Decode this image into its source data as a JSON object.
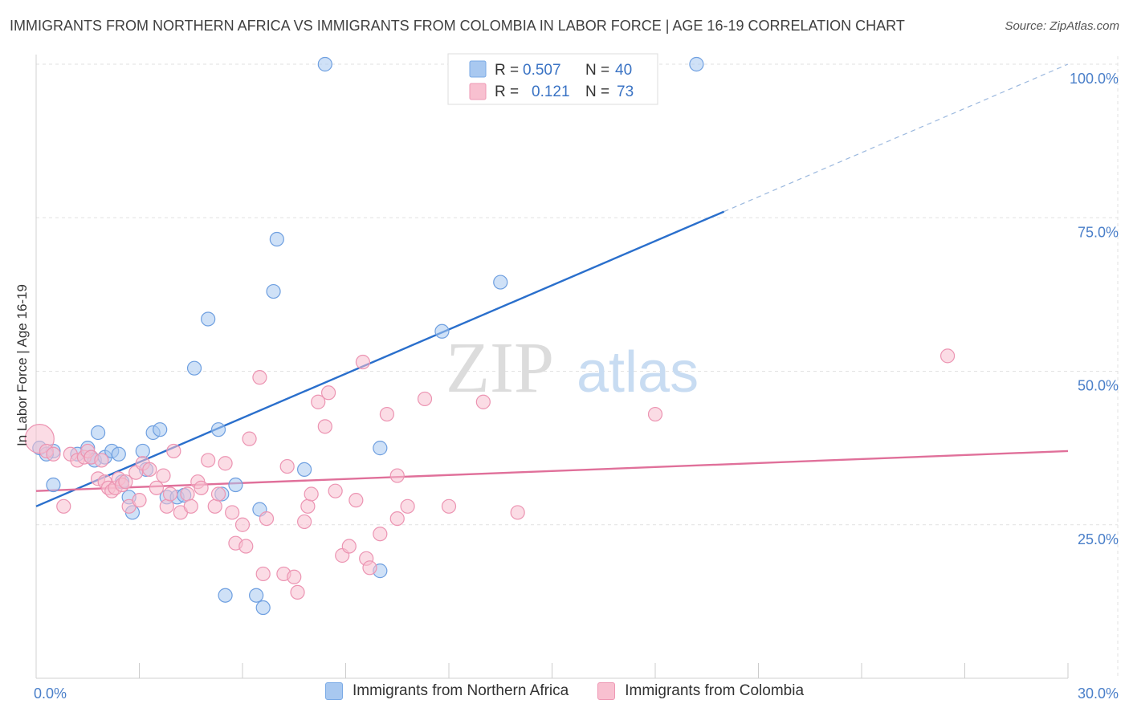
{
  "header": {
    "title": "IMMIGRANTS FROM NORTHERN AFRICA VS IMMIGRANTS FROM COLOMBIA IN LABOR FORCE | AGE 16-19 CORRELATION CHART",
    "source": "Source: ZipAtlas.com"
  },
  "watermark": {
    "zip": "ZIP",
    "atlas": "atlas"
  },
  "legend": {
    "r_label": "R =",
    "n_label": "N =",
    "entries": [
      {
        "r": "0.507",
        "n": "40",
        "color": "#a8c8f0",
        "stroke": "#7aaae6"
      },
      {
        "r": "0.121",
        "n": "73",
        "color": "#f8c0d0",
        "stroke": "#ee98b4"
      }
    ]
  },
  "chart_data": {
    "type": "scatter",
    "title": "IMMIGRANTS FROM NORTHERN AFRICA VS IMMIGRANTS FROM COLOMBIA IN LABOR FORCE | AGE 16-19 CORRELATION CHART",
    "xlabel": "",
    "ylabel": "In Labor Force | Age 16-19",
    "xlim": [
      0,
      30
    ],
    "ylim": [
      0,
      100
    ],
    "x_tick_labels": [
      "0.0%",
      "30.0%"
    ],
    "y_ticks": [
      25,
      50,
      75,
      100
    ],
    "y_tick_labels": [
      "25.0%",
      "50.0%",
      "75.0%",
      "100.0%"
    ],
    "grid": true,
    "legend_position": "top-center",
    "series": [
      {
        "name": "Immigrants from Northern Africa",
        "color": "#a8c8f0",
        "stroke": "#6e9fe0",
        "line_color": "#2a6fcc",
        "trend": {
          "x0": 0,
          "y0": 28,
          "x1": 20,
          "y1": 76,
          "dashed_to_x": 30,
          "dashed_to_y": 100
        },
        "points": [
          [
            0.1,
            37.5
          ],
          [
            0.5,
            37.0
          ],
          [
            0.5,
            31.5
          ],
          [
            1.2,
            36.5
          ],
          [
            1.5,
            37.5
          ],
          [
            1.6,
            36.0
          ],
          [
            1.7,
            35.5
          ],
          [
            1.8,
            40.0
          ],
          [
            2.0,
            36.0
          ],
          [
            2.2,
            37.0
          ],
          [
            2.4,
            36.5
          ],
          [
            2.5,
            32.0
          ],
          [
            2.7,
            29.5
          ],
          [
            2.8,
            27.0
          ],
          [
            3.1,
            37.0
          ],
          [
            3.2,
            34.0
          ],
          [
            3.4,
            40.0
          ],
          [
            3.6,
            40.5
          ],
          [
            3.8,
            29.5
          ],
          [
            4.1,
            29.5
          ],
          [
            4.3,
            29.8
          ],
          [
            4.6,
            50.5
          ],
          [
            5.0,
            58.5
          ],
          [
            5.3,
            40.5
          ],
          [
            5.4,
            30.0
          ],
          [
            5.5,
            13.5
          ],
          [
            5.8,
            31.5
          ],
          [
            6.4,
            13.5
          ],
          [
            6.5,
            27.5
          ],
          [
            6.6,
            11.5
          ],
          [
            6.9,
            63.0
          ],
          [
            7.0,
            71.5
          ],
          [
            7.8,
            34.0
          ],
          [
            8.4,
            100.0
          ],
          [
            10.0,
            37.5
          ],
          [
            10.0,
            17.5
          ],
          [
            11.8,
            56.5
          ],
          [
            13.5,
            64.5
          ],
          [
            19.2,
            100.0
          ],
          [
            0.3,
            36.5
          ]
        ]
      },
      {
        "name": "Immigrants from Colombia",
        "color": "#f8c0d0",
        "stroke": "#ec94b2",
        "line_color": "#e0709a",
        "trend": {
          "x0": 0,
          "y0": 30.5,
          "x1": 30,
          "y1": 37.0
        },
        "points": [
          [
            0.1,
            39.0
          ],
          [
            0.3,
            37.0
          ],
          [
            0.5,
            36.5
          ],
          [
            0.8,
            28.0
          ],
          [
            1.0,
            36.5
          ],
          [
            1.2,
            35.5
          ],
          [
            1.4,
            36.0
          ],
          [
            1.5,
            37.0
          ],
          [
            1.6,
            36.0
          ],
          [
            1.8,
            32.5
          ],
          [
            1.9,
            35.5
          ],
          [
            2.0,
            32.0
          ],
          [
            2.1,
            31.0
          ],
          [
            2.2,
            30.5
          ],
          [
            2.3,
            31.0
          ],
          [
            2.4,
            32.5
          ],
          [
            2.5,
            31.5
          ],
          [
            2.6,
            32.0
          ],
          [
            2.7,
            28.0
          ],
          [
            2.9,
            33.5
          ],
          [
            3.0,
            29.0
          ],
          [
            3.1,
            35.0
          ],
          [
            3.3,
            34.0
          ],
          [
            3.5,
            31.0
          ],
          [
            3.7,
            33.0
          ],
          [
            3.8,
            28.0
          ],
          [
            3.9,
            30.0
          ],
          [
            4.0,
            37.0
          ],
          [
            4.2,
            27.0
          ],
          [
            4.4,
            30.0
          ],
          [
            4.5,
            28.0
          ],
          [
            4.7,
            32.0
          ],
          [
            4.8,
            31.0
          ],
          [
            5.0,
            35.5
          ],
          [
            5.2,
            28.0
          ],
          [
            5.3,
            30.0
          ],
          [
            5.5,
            35.0
          ],
          [
            5.7,
            27.0
          ],
          [
            5.8,
            22.0
          ],
          [
            6.0,
            25.0
          ],
          [
            6.1,
            21.5
          ],
          [
            6.2,
            39.0
          ],
          [
            6.5,
            49.0
          ],
          [
            6.6,
            17.0
          ],
          [
            6.7,
            26.0
          ],
          [
            7.2,
            17.0
          ],
          [
            7.3,
            34.5
          ],
          [
            7.5,
            16.5
          ],
          [
            7.6,
            14.0
          ],
          [
            7.8,
            25.5
          ],
          [
            7.9,
            28.0
          ],
          [
            8.0,
            30.0
          ],
          [
            8.2,
            45.0
          ],
          [
            8.4,
            41.0
          ],
          [
            8.5,
            46.5
          ],
          [
            8.7,
            30.5
          ],
          [
            8.9,
            20.0
          ],
          [
            9.1,
            21.5
          ],
          [
            9.3,
            29.0
          ],
          [
            9.5,
            51.5
          ],
          [
            9.6,
            19.5
          ],
          [
            9.7,
            18.0
          ],
          [
            10.0,
            23.5
          ],
          [
            10.2,
            43.0
          ],
          [
            10.5,
            26.0
          ],
          [
            10.8,
            28.0
          ],
          [
            10.5,
            33.0
          ],
          [
            11.3,
            45.5
          ],
          [
            12.0,
            28.0
          ],
          [
            13.0,
            45.0
          ],
          [
            14.0,
            27.0
          ],
          [
            18.0,
            43.0
          ],
          [
            26.5,
            52.5
          ]
        ]
      }
    ]
  }
}
